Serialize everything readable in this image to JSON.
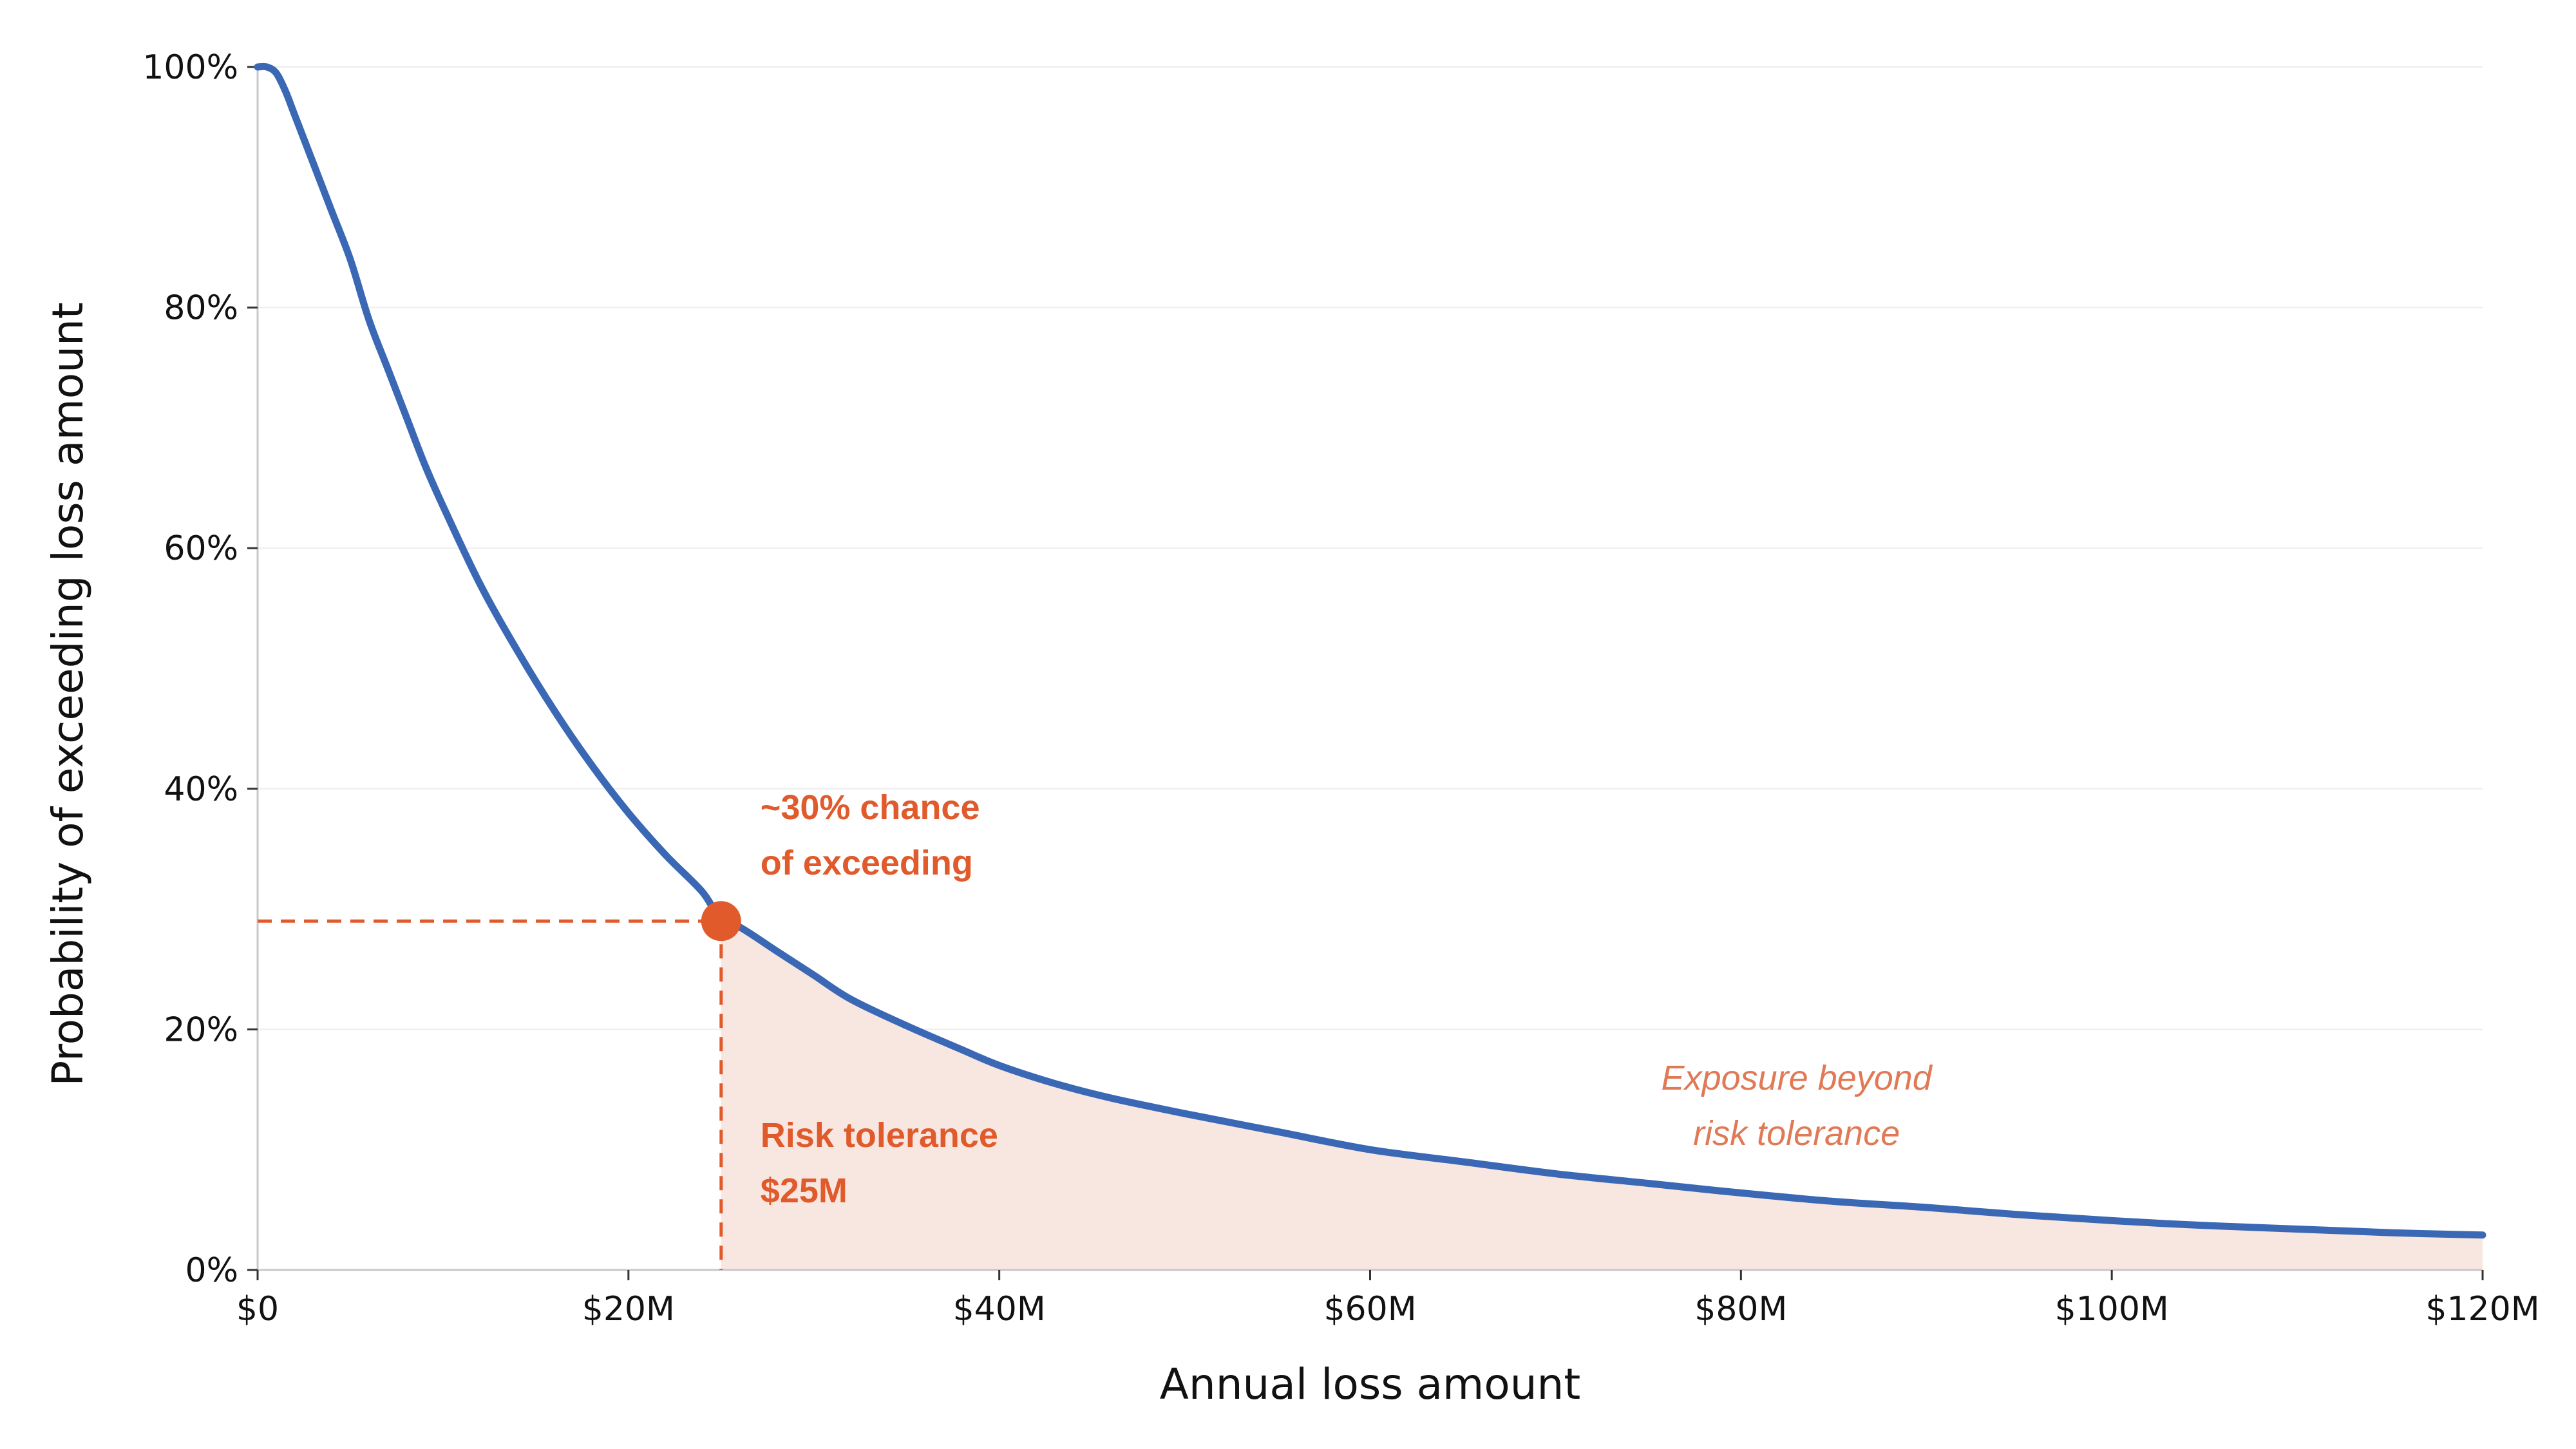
{
  "chart_data": {
    "type": "line",
    "title": "",
    "xlabel": "Annual loss amount",
    "ylabel": "Probability of exceeding loss amount",
    "xlim": [
      0,
      120
    ],
    "ylim": [
      0,
      1
    ],
    "x_ticks": [
      0,
      20,
      40,
      60,
      80,
      100,
      120
    ],
    "x_tick_labels": [
      "$0",
      "$20M",
      "$40M",
      "$60M",
      "$80M",
      "$100M",
      "$120M"
    ],
    "y_ticks": [
      0,
      0.2,
      0.4,
      0.6,
      0.8,
      1.0
    ],
    "y_tick_labels": [
      "0%",
      "20%",
      "40%",
      "60%",
      "80%",
      "100%"
    ],
    "grid": "horizontal, faint",
    "series": [
      {
        "color": "#3a68b4",
        "x": [
          0,
          0.5,
          1,
          1.5,
          2,
          3,
          4,
          5,
          6,
          7,
          8,
          9,
          10,
          12,
          14,
          16,
          18,
          20,
          22,
          24,
          25,
          26,
          28,
          30,
          32,
          35,
          38,
          40,
          43,
          46,
          50,
          55,
          60,
          65,
          70,
          75,
          80,
          85,
          90,
          95,
          100,
          105,
          110,
          115,
          120
        ],
        "y": [
          1.0,
          1.0,
          0.995,
          0.98,
          0.96,
          0.92,
          0.88,
          0.84,
          0.79,
          0.75,
          0.71,
          0.67,
          0.635,
          0.57,
          0.515,
          0.465,
          0.42,
          0.38,
          0.345,
          0.314,
          0.29,
          0.285,
          0.265,
          0.245,
          0.225,
          0.203,
          0.183,
          0.17,
          0.155,
          0.143,
          0.13,
          0.115,
          0.1,
          0.09,
          0.08,
          0.072,
          0.064,
          0.057,
          0.052,
          0.046,
          0.041,
          0.037,
          0.034,
          0.031,
          0.029
        ]
      }
    ],
    "highlight_point": {
      "x": 25,
      "y": 0.29,
      "color": "#e05a2b"
    },
    "shaded_region": {
      "x_from": 25,
      "x_to": 120,
      "color": "#f8e6e1"
    },
    "annotations": {
      "chance_line1": "~30% chance",
      "chance_line2": "of exceeding",
      "tolerance_line1": "Risk tolerance",
      "tolerance_line2": "$25M",
      "exposure_line1": "Exposure beyond",
      "exposure_line2": "risk tolerance"
    },
    "colors": {
      "curve": "#3a68b4",
      "accent": "#e05a2b",
      "exposure_text": "#e07a56",
      "fill": "#f8e6e1",
      "grid": "#eeeeee",
      "axis": "#c8c8c8"
    }
  }
}
